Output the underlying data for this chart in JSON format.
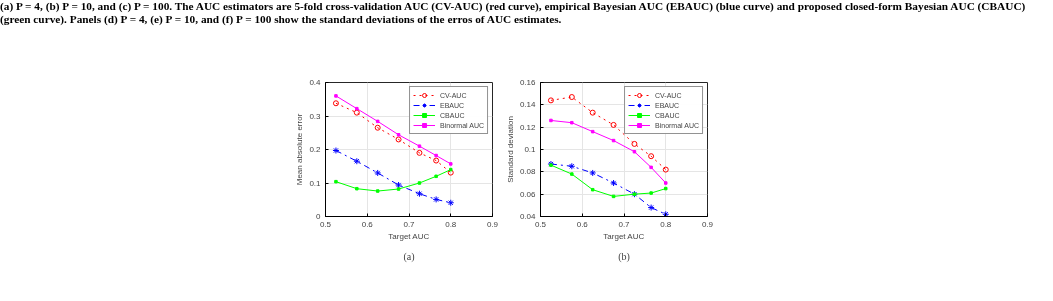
{
  "chart_data": [
    {
      "type": "line",
      "xlabel": "Target AUC",
      "ylabel": "Mean absolute error",
      "annotations": [
        "(a) P = 4, (b) P = 10, and (c) P = 100. The AUC estimators are 5-fold cross-validation AUC (CV-AUC) (red curve), empirical Bayesian AUC (EBAUC) (blue curve) and proposed closed-form Bayesian AUC (CBAUC) (green curve). Panels (d) P = 4, (e) P = 10, and (f) P = 100 show the standard deviations of the erros of AUC estimates.",
        "(a)"
      ],
      "x": [
        0.525,
        0.575,
        0.625,
        0.675,
        0.725,
        0.765,
        0.8
      ],
      "xlim": [
        0.5,
        0.9
      ],
      "xticks": [
        0.5,
        0.6,
        0.7,
        0.8,
        0.9
      ],
      "ylim": [
        0,
        0.4
      ],
      "yticks": [
        0,
        0.1,
        0.2,
        0.3,
        0.4
      ],
      "grid": true,
      "legend": "top right",
      "series": [
        {
          "name": "CV-AUC",
          "color": "#ff0000",
          "marker": "circle",
          "line_style": "dotted",
          "values": [
            0.338,
            0.31,
            0.265,
            0.23,
            0.19,
            0.167,
            0.131
          ]
        },
        {
          "name": "EBAUC",
          "color": "#0000ff",
          "marker": "cross",
          "line_style": "dashed",
          "values": [
            0.197,
            0.165,
            0.13,
            0.094,
            0.068,
            0.051,
            0.041
          ]
        },
        {
          "name": "CBAUC",
          "color": "#00ff00",
          "marker": "square",
          "line_style": "solid",
          "values": [
            0.104,
            0.083,
            0.076,
            0.082,
            0.1,
            0.12,
            0.14
          ]
        },
        {
          "name": "Binormal AUC",
          "color": "#ff00ff",
          "marker": "square",
          "line_style": "solid",
          "values": [
            0.36,
            0.322,
            0.284,
            0.244,
            0.21,
            0.182,
            0.157
          ]
        }
      ]
    },
    {
      "type": "line",
      "xlabel": "Target AUC",
      "ylabel": "Standard deviation",
      "annotations": [
        "(b)"
      ],
      "x": [
        0.525,
        0.575,
        0.625,
        0.675,
        0.725,
        0.765,
        0.8
      ],
      "xlim": [
        0.5,
        0.9
      ],
      "xticks": [
        0.5,
        0.6,
        0.7,
        0.8,
        0.9
      ],
      "ylim": [
        0.04,
        0.16
      ],
      "yticks": [
        0.04,
        0.06,
        0.08,
        0.1,
        0.12,
        0.14,
        0.16
      ],
      "grid": true,
      "legend": "top right",
      "series": [
        {
          "name": "CV-AUC",
          "color": "#ff0000",
          "marker": "circle",
          "line_style": "dotted",
          "values": [
            0.144,
            0.147,
            0.133,
            0.122,
            0.105,
            0.094,
            0.082
          ]
        },
        {
          "name": "EBAUC",
          "color": "#0000ff",
          "marker": "cross",
          "line_style": "dashed",
          "values": [
            0.087,
            0.085,
            0.079,
            0.07,
            0.06,
            0.048,
            0.042
          ]
        },
        {
          "name": "CBAUC",
          "color": "#00ff00",
          "marker": "square",
          "line_style": "solid",
          "values": [
            0.086,
            0.078,
            0.064,
            0.058,
            0.06,
            0.061,
            0.065
          ]
        },
        {
          "name": "Binormal AUC",
          "color": "#ff00ff",
          "marker": "square",
          "line_style": "solid",
          "values": [
            0.126,
            0.124,
            0.116,
            0.108,
            0.098,
            0.084,
            0.07
          ]
        }
      ]
    }
  ]
}
